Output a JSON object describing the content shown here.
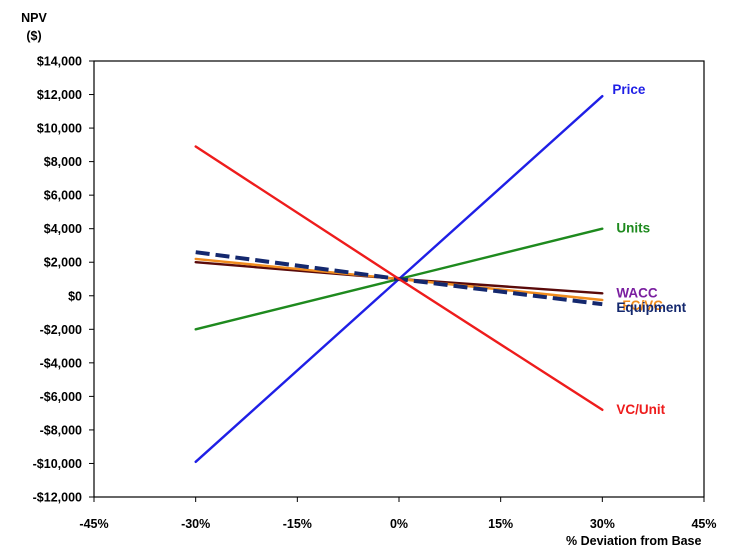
{
  "chart_data": {
    "type": "line",
    "title": "",
    "xlabel": "% Deviation from Base",
    "ylabel_lines": [
      "NPV",
      "($)"
    ],
    "xlim": [
      -45,
      45
    ],
    "ylim": [
      -12000,
      14000
    ],
    "x_ticks": [
      -45,
      -30,
      -15,
      0,
      15,
      30,
      45
    ],
    "x_tick_labels": [
      "-45%",
      "-30%",
      "-15%",
      "0%",
      "15%",
      "30%",
      "45%"
    ],
    "y_ticks": [
      14000,
      12000,
      10000,
      8000,
      6000,
      4000,
      2000,
      0,
      -2000,
      -4000,
      -6000,
      -8000,
      -10000,
      -12000
    ],
    "y_tick_labels": [
      "$14,000",
      "$12,000",
      "$10,000",
      "$8,000",
      "$6,000",
      "$4,000",
      "$2,000",
      "$0",
      "-$2,000",
      "-$4,000",
      "-$6,000",
      "-$8,000",
      "-$10,000",
      "-$12,000"
    ],
    "grid": false,
    "legend": "inline labels at line ends",
    "series": [
      {
        "name": "Price",
        "color": "#1f1fe6",
        "dash": false,
        "x": [
          -30,
          0,
          30
        ],
        "values": [
          -9900,
          1000,
          11900
        ]
      },
      {
        "name": "Units",
        "color": "#1e8a1e",
        "dash": false,
        "x": [
          -30,
          0,
          30
        ],
        "values": [
          -2000,
          1000,
          4000
        ]
      },
      {
        "name": "WACC",
        "color": "#5a0a0a",
        "label_color": "#7a1fa0",
        "dash": false,
        "x": [
          -30,
          0,
          30
        ],
        "values": [
          2000,
          1000,
          150
        ]
      },
      {
        "name": "FC/VC",
        "color": "#f08c1e",
        "dash": false,
        "x": [
          -30,
          0,
          30
        ],
        "values": [
          2200,
          1000,
          -250
        ]
      },
      {
        "name": "Equipment",
        "color": "#14286e",
        "dash": true,
        "x": [
          -30,
          0,
          30
        ],
        "values": [
          2600,
          1000,
          -500
        ]
      },
      {
        "name": "VC/Unit",
        "color": "#ee1c1c",
        "dash": false,
        "x": [
          -30,
          0,
          30
        ],
        "values": [
          8900,
          1000,
          -6800
        ]
      }
    ]
  }
}
